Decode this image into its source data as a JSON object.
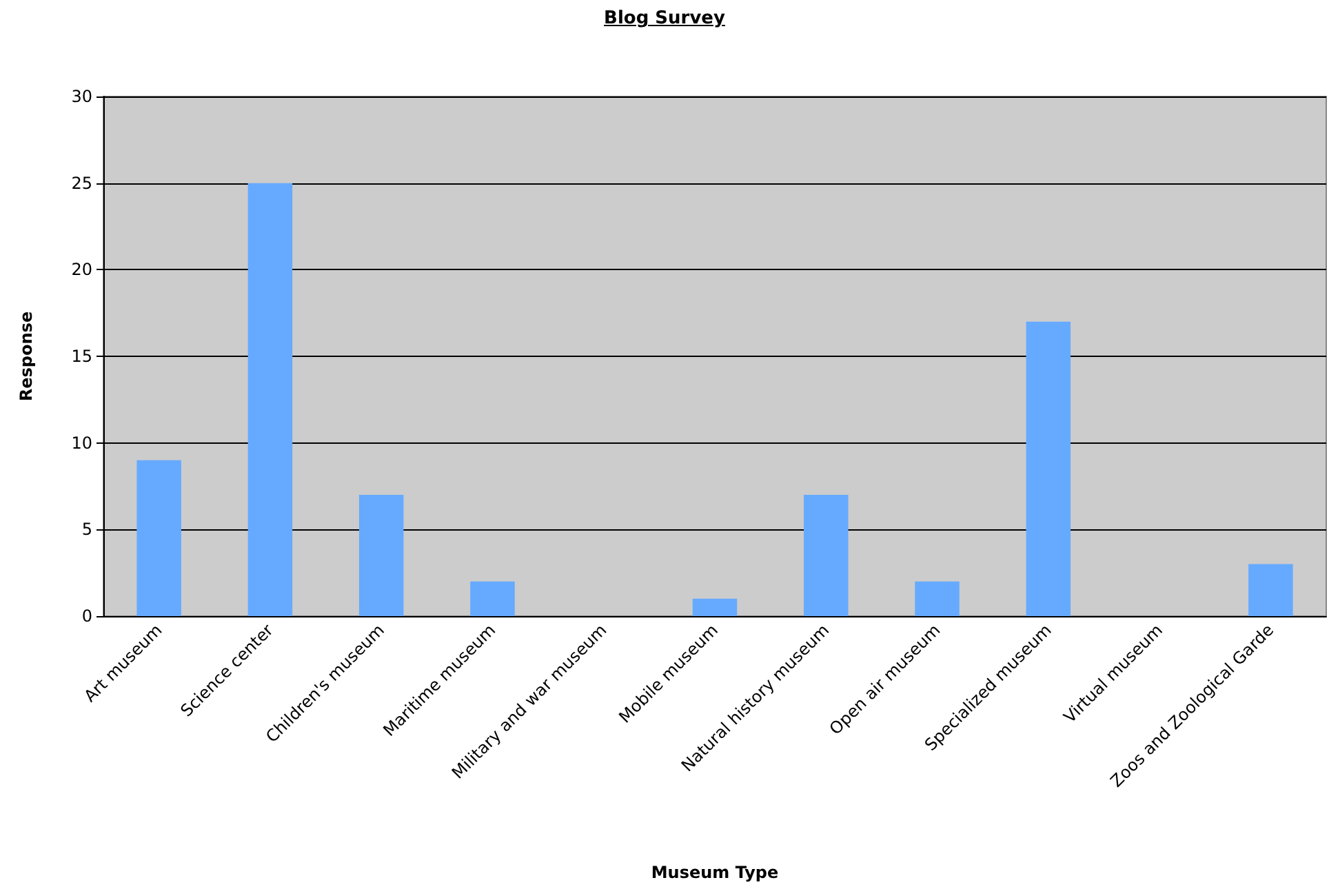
{
  "chart_data": {
    "type": "bar",
    "title": "Blog Survey",
    "xlabel": "Museum Type",
    "ylabel": "Response",
    "categories": [
      "Art museum",
      "Science center",
      "Children's museum",
      "Maritime museum",
      "Military and war museum",
      "Mobile museum",
      "Natural history museum",
      "Open air museum",
      "Specialized museum",
      "Virtual museum",
      "Zoos and Zoological Garde"
    ],
    "values": [
      9,
      25,
      7,
      2,
      0,
      1,
      7,
      2,
      17,
      0,
      3
    ],
    "color": "#66aaff",
    "ylim": [
      0,
      30
    ],
    "yticks": [
      0,
      5,
      10,
      15,
      20,
      25,
      30
    ],
    "grid": "y"
  }
}
